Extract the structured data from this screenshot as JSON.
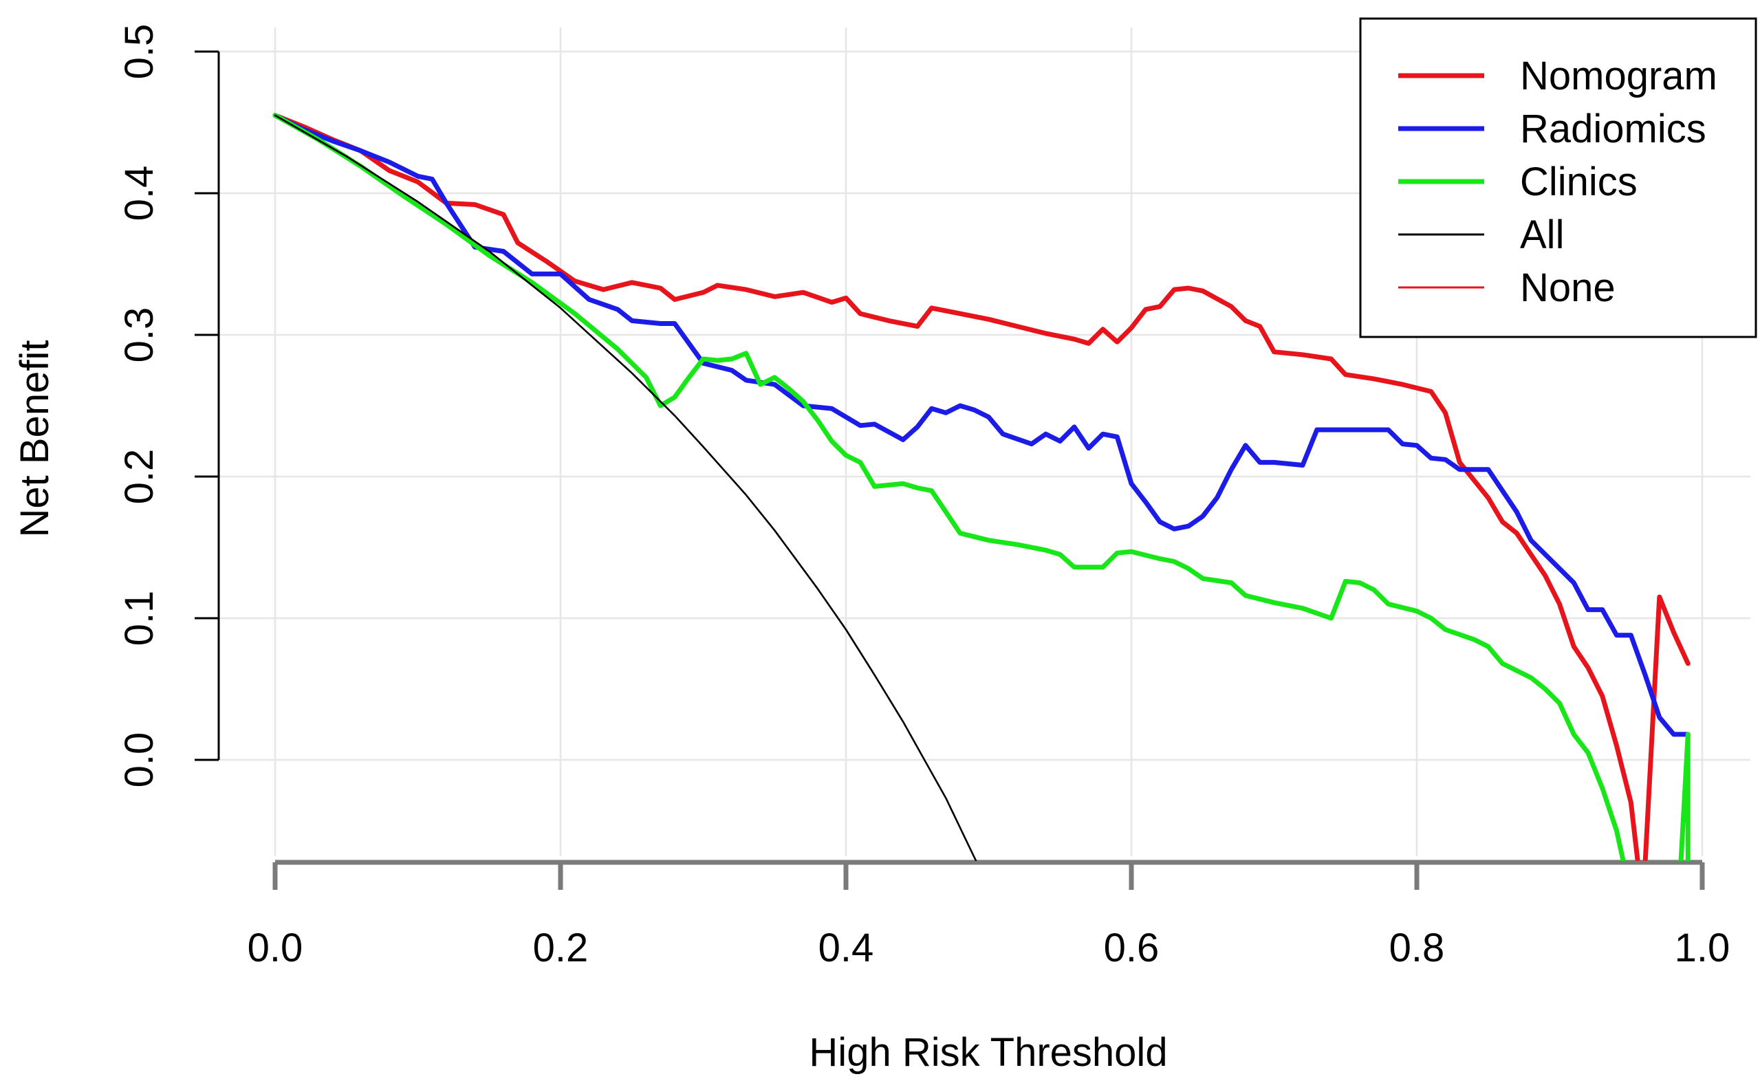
{
  "chart_data": {
    "type": "line",
    "title": "",
    "xlabel": "High Risk Threshold",
    "ylabel": "Net Benefit",
    "xlim": [
      0.0,
      1.0
    ],
    "ylim": [
      -0.073,
      0.5
    ],
    "x_ticks": [
      0.0,
      0.2,
      0.4,
      0.6,
      0.8,
      1.0
    ],
    "x_tick_labels": [
      "0.0",
      "0.2",
      "0.4",
      "0.6",
      "0.8",
      "1.0"
    ],
    "y_ticks": [
      0.0,
      0.1,
      0.2,
      0.3,
      0.4,
      0.5
    ],
    "y_tick_labels": [
      "0.0",
      "0.1",
      "0.2",
      "0.3",
      "0.4",
      "0.5"
    ],
    "grid": true,
    "legend_position": "top-right",
    "series": [
      {
        "name": "Nomogram",
        "color": "#e8141c",
        "width": "thick",
        "points": [
          [
            0.0,
            0.455
          ],
          [
            0.02,
            0.447
          ],
          [
            0.04,
            0.438
          ],
          [
            0.06,
            0.43
          ],
          [
            0.08,
            0.416
          ],
          [
            0.1,
            0.408
          ],
          [
            0.12,
            0.393
          ],
          [
            0.14,
            0.392
          ],
          [
            0.16,
            0.385
          ],
          [
            0.17,
            0.365
          ],
          [
            0.19,
            0.352
          ],
          [
            0.21,
            0.338
          ],
          [
            0.23,
            0.332
          ],
          [
            0.25,
            0.337
          ],
          [
            0.27,
            0.333
          ],
          [
            0.28,
            0.325
          ],
          [
            0.3,
            0.33
          ],
          [
            0.31,
            0.335
          ],
          [
            0.33,
            0.332
          ],
          [
            0.35,
            0.327
          ],
          [
            0.37,
            0.33
          ],
          [
            0.39,
            0.323
          ],
          [
            0.4,
            0.326
          ],
          [
            0.41,
            0.315
          ],
          [
            0.43,
            0.31
          ],
          [
            0.45,
            0.306
          ],
          [
            0.46,
            0.319
          ],
          [
            0.48,
            0.315
          ],
          [
            0.5,
            0.311
          ],
          [
            0.52,
            0.306
          ],
          [
            0.54,
            0.301
          ],
          [
            0.56,
            0.297
          ],
          [
            0.57,
            0.294
          ],
          [
            0.58,
            0.304
          ],
          [
            0.59,
            0.295
          ],
          [
            0.6,
            0.305
          ],
          [
            0.61,
            0.318
          ],
          [
            0.62,
            0.32
          ],
          [
            0.63,
            0.332
          ],
          [
            0.64,
            0.333
          ],
          [
            0.65,
            0.331
          ],
          [
            0.67,
            0.32
          ],
          [
            0.68,
            0.31
          ],
          [
            0.69,
            0.306
          ],
          [
            0.7,
            0.288
          ],
          [
            0.72,
            0.286
          ],
          [
            0.74,
            0.283
          ],
          [
            0.75,
            0.272
          ],
          [
            0.77,
            0.269
          ],
          [
            0.79,
            0.265
          ],
          [
            0.81,
            0.26
          ],
          [
            0.82,
            0.245
          ],
          [
            0.83,
            0.21
          ],
          [
            0.85,
            0.185
          ],
          [
            0.86,
            0.168
          ],
          [
            0.87,
            0.16
          ],
          [
            0.88,
            0.145
          ],
          [
            0.89,
            0.13
          ],
          [
            0.9,
            0.11
          ],
          [
            0.91,
            0.08
          ],
          [
            0.92,
            0.065
          ],
          [
            0.93,
            0.045
          ],
          [
            0.94,
            0.01
          ],
          [
            0.95,
            -0.03
          ],
          [
            0.955,
            -0.073
          ],
          [
            0.96,
            -0.073
          ],
          [
            0.97,
            0.115
          ],
          [
            0.98,
            0.09
          ],
          [
            0.99,
            0.068
          ]
        ]
      },
      {
        "name": "Radiomics",
        "color": "#1c1ce8",
        "width": "thick",
        "points": [
          [
            0.0,
            0.455
          ],
          [
            0.02,
            0.445
          ],
          [
            0.04,
            0.437
          ],
          [
            0.06,
            0.43
          ],
          [
            0.08,
            0.422
          ],
          [
            0.1,
            0.412
          ],
          [
            0.11,
            0.41
          ],
          [
            0.12,
            0.393
          ],
          [
            0.14,
            0.362
          ],
          [
            0.16,
            0.359
          ],
          [
            0.18,
            0.343
          ],
          [
            0.2,
            0.343
          ],
          [
            0.22,
            0.325
          ],
          [
            0.24,
            0.318
          ],
          [
            0.25,
            0.31
          ],
          [
            0.27,
            0.308
          ],
          [
            0.28,
            0.308
          ],
          [
            0.3,
            0.28
          ],
          [
            0.32,
            0.275
          ],
          [
            0.33,
            0.268
          ],
          [
            0.35,
            0.265
          ],
          [
            0.37,
            0.25
          ],
          [
            0.39,
            0.248
          ],
          [
            0.41,
            0.236
          ],
          [
            0.42,
            0.237
          ],
          [
            0.44,
            0.226
          ],
          [
            0.45,
            0.235
          ],
          [
            0.46,
            0.248
          ],
          [
            0.47,
            0.245
          ],
          [
            0.48,
            0.25
          ],
          [
            0.49,
            0.247
          ],
          [
            0.5,
            0.242
          ],
          [
            0.51,
            0.23
          ],
          [
            0.53,
            0.223
          ],
          [
            0.54,
            0.23
          ],
          [
            0.55,
            0.225
          ],
          [
            0.56,
            0.235
          ],
          [
            0.57,
            0.22
          ],
          [
            0.58,
            0.23
          ],
          [
            0.59,
            0.228
          ],
          [
            0.6,
            0.195
          ],
          [
            0.61,
            0.182
          ],
          [
            0.62,
            0.168
          ],
          [
            0.63,
            0.163
          ],
          [
            0.64,
            0.165
          ],
          [
            0.65,
            0.172
          ],
          [
            0.66,
            0.185
          ],
          [
            0.67,
            0.205
          ],
          [
            0.68,
            0.222
          ],
          [
            0.69,
            0.21
          ],
          [
            0.7,
            0.21
          ],
          [
            0.72,
            0.208
          ],
          [
            0.73,
            0.233
          ],
          [
            0.75,
            0.233
          ],
          [
            0.78,
            0.233
          ],
          [
            0.79,
            0.223
          ],
          [
            0.8,
            0.222
          ],
          [
            0.81,
            0.213
          ],
          [
            0.82,
            0.212
          ],
          [
            0.83,
            0.205
          ],
          [
            0.85,
            0.205
          ],
          [
            0.86,
            0.19
          ],
          [
            0.87,
            0.175
          ],
          [
            0.88,
            0.155
          ],
          [
            0.89,
            0.145
          ],
          [
            0.9,
            0.135
          ],
          [
            0.91,
            0.125
          ],
          [
            0.92,
            0.106
          ],
          [
            0.93,
            0.106
          ],
          [
            0.94,
            0.088
          ],
          [
            0.95,
            0.088
          ],
          [
            0.96,
            0.06
          ],
          [
            0.97,
            0.03
          ],
          [
            0.98,
            0.018
          ],
          [
            0.99,
            0.018
          ]
        ]
      },
      {
        "name": "Clinics",
        "color": "#19e619",
        "width": "thick",
        "points": [
          [
            0.0,
            0.455
          ],
          [
            0.03,
            0.438
          ],
          [
            0.06,
            0.419
          ],
          [
            0.09,
            0.398
          ],
          [
            0.12,
            0.378
          ],
          [
            0.15,
            0.356
          ],
          [
            0.18,
            0.337
          ],
          [
            0.21,
            0.315
          ],
          [
            0.24,
            0.29
          ],
          [
            0.26,
            0.27
          ],
          [
            0.27,
            0.25
          ],
          [
            0.28,
            0.256
          ],
          [
            0.29,
            0.27
          ],
          [
            0.3,
            0.283
          ],
          [
            0.31,
            0.282
          ],
          [
            0.32,
            0.283
          ],
          [
            0.33,
            0.287
          ],
          [
            0.34,
            0.265
          ],
          [
            0.35,
            0.27
          ],
          [
            0.36,
            0.262
          ],
          [
            0.37,
            0.253
          ],
          [
            0.38,
            0.24
          ],
          [
            0.39,
            0.225
          ],
          [
            0.4,
            0.215
          ],
          [
            0.41,
            0.21
          ],
          [
            0.42,
            0.193
          ],
          [
            0.44,
            0.195
          ],
          [
            0.45,
            0.192
          ],
          [
            0.46,
            0.19
          ],
          [
            0.47,
            0.175
          ],
          [
            0.48,
            0.16
          ],
          [
            0.5,
            0.155
          ],
          [
            0.52,
            0.152
          ],
          [
            0.54,
            0.148
          ],
          [
            0.55,
            0.145
          ],
          [
            0.56,
            0.136
          ],
          [
            0.58,
            0.136
          ],
          [
            0.59,
            0.146
          ],
          [
            0.6,
            0.147
          ],
          [
            0.62,
            0.142
          ],
          [
            0.63,
            0.14
          ],
          [
            0.64,
            0.135
          ],
          [
            0.65,
            0.128
          ],
          [
            0.67,
            0.125
          ],
          [
            0.68,
            0.116
          ],
          [
            0.7,
            0.111
          ],
          [
            0.72,
            0.107
          ],
          [
            0.74,
            0.1
          ],
          [
            0.75,
            0.126
          ],
          [
            0.76,
            0.125
          ],
          [
            0.77,
            0.12
          ],
          [
            0.78,
            0.11
          ],
          [
            0.8,
            0.105
          ],
          [
            0.81,
            0.1
          ],
          [
            0.82,
            0.092
          ],
          [
            0.84,
            0.085
          ],
          [
            0.85,
            0.08
          ],
          [
            0.86,
            0.068
          ],
          [
            0.88,
            0.058
          ],
          [
            0.89,
            0.05
          ],
          [
            0.9,
            0.04
          ],
          [
            0.91,
            0.018
          ],
          [
            0.92,
            0.005
          ],
          [
            0.93,
            -0.02
          ],
          [
            0.94,
            -0.05
          ],
          [
            0.945,
            -0.073
          ],
          [
            0.985,
            -0.073
          ],
          [
            0.99,
            0.018
          ],
          [
            0.99,
            -0.073
          ]
        ]
      },
      {
        "name": "All",
        "color": "#000000",
        "width": "thin",
        "points": [
          [
            0.0,
            0.455
          ],
          [
            0.05,
            0.426
          ],
          [
            0.1,
            0.394
          ],
          [
            0.15,
            0.359
          ],
          [
            0.2,
            0.319
          ],
          [
            0.25,
            0.273
          ],
          [
            0.28,
            0.243
          ],
          [
            0.3,
            0.221
          ],
          [
            0.33,
            0.187
          ],
          [
            0.35,
            0.162
          ],
          [
            0.38,
            0.121
          ],
          [
            0.4,
            0.092
          ],
          [
            0.42,
            0.06
          ],
          [
            0.44,
            0.027
          ],
          [
            0.455,
            0.0
          ],
          [
            0.47,
            -0.027
          ],
          [
            0.49,
            -0.069
          ],
          [
            0.492,
            -0.073
          ]
        ]
      },
      {
        "name": "None",
        "color": "#e8141c",
        "width": "thin",
        "points": []
      }
    ]
  }
}
